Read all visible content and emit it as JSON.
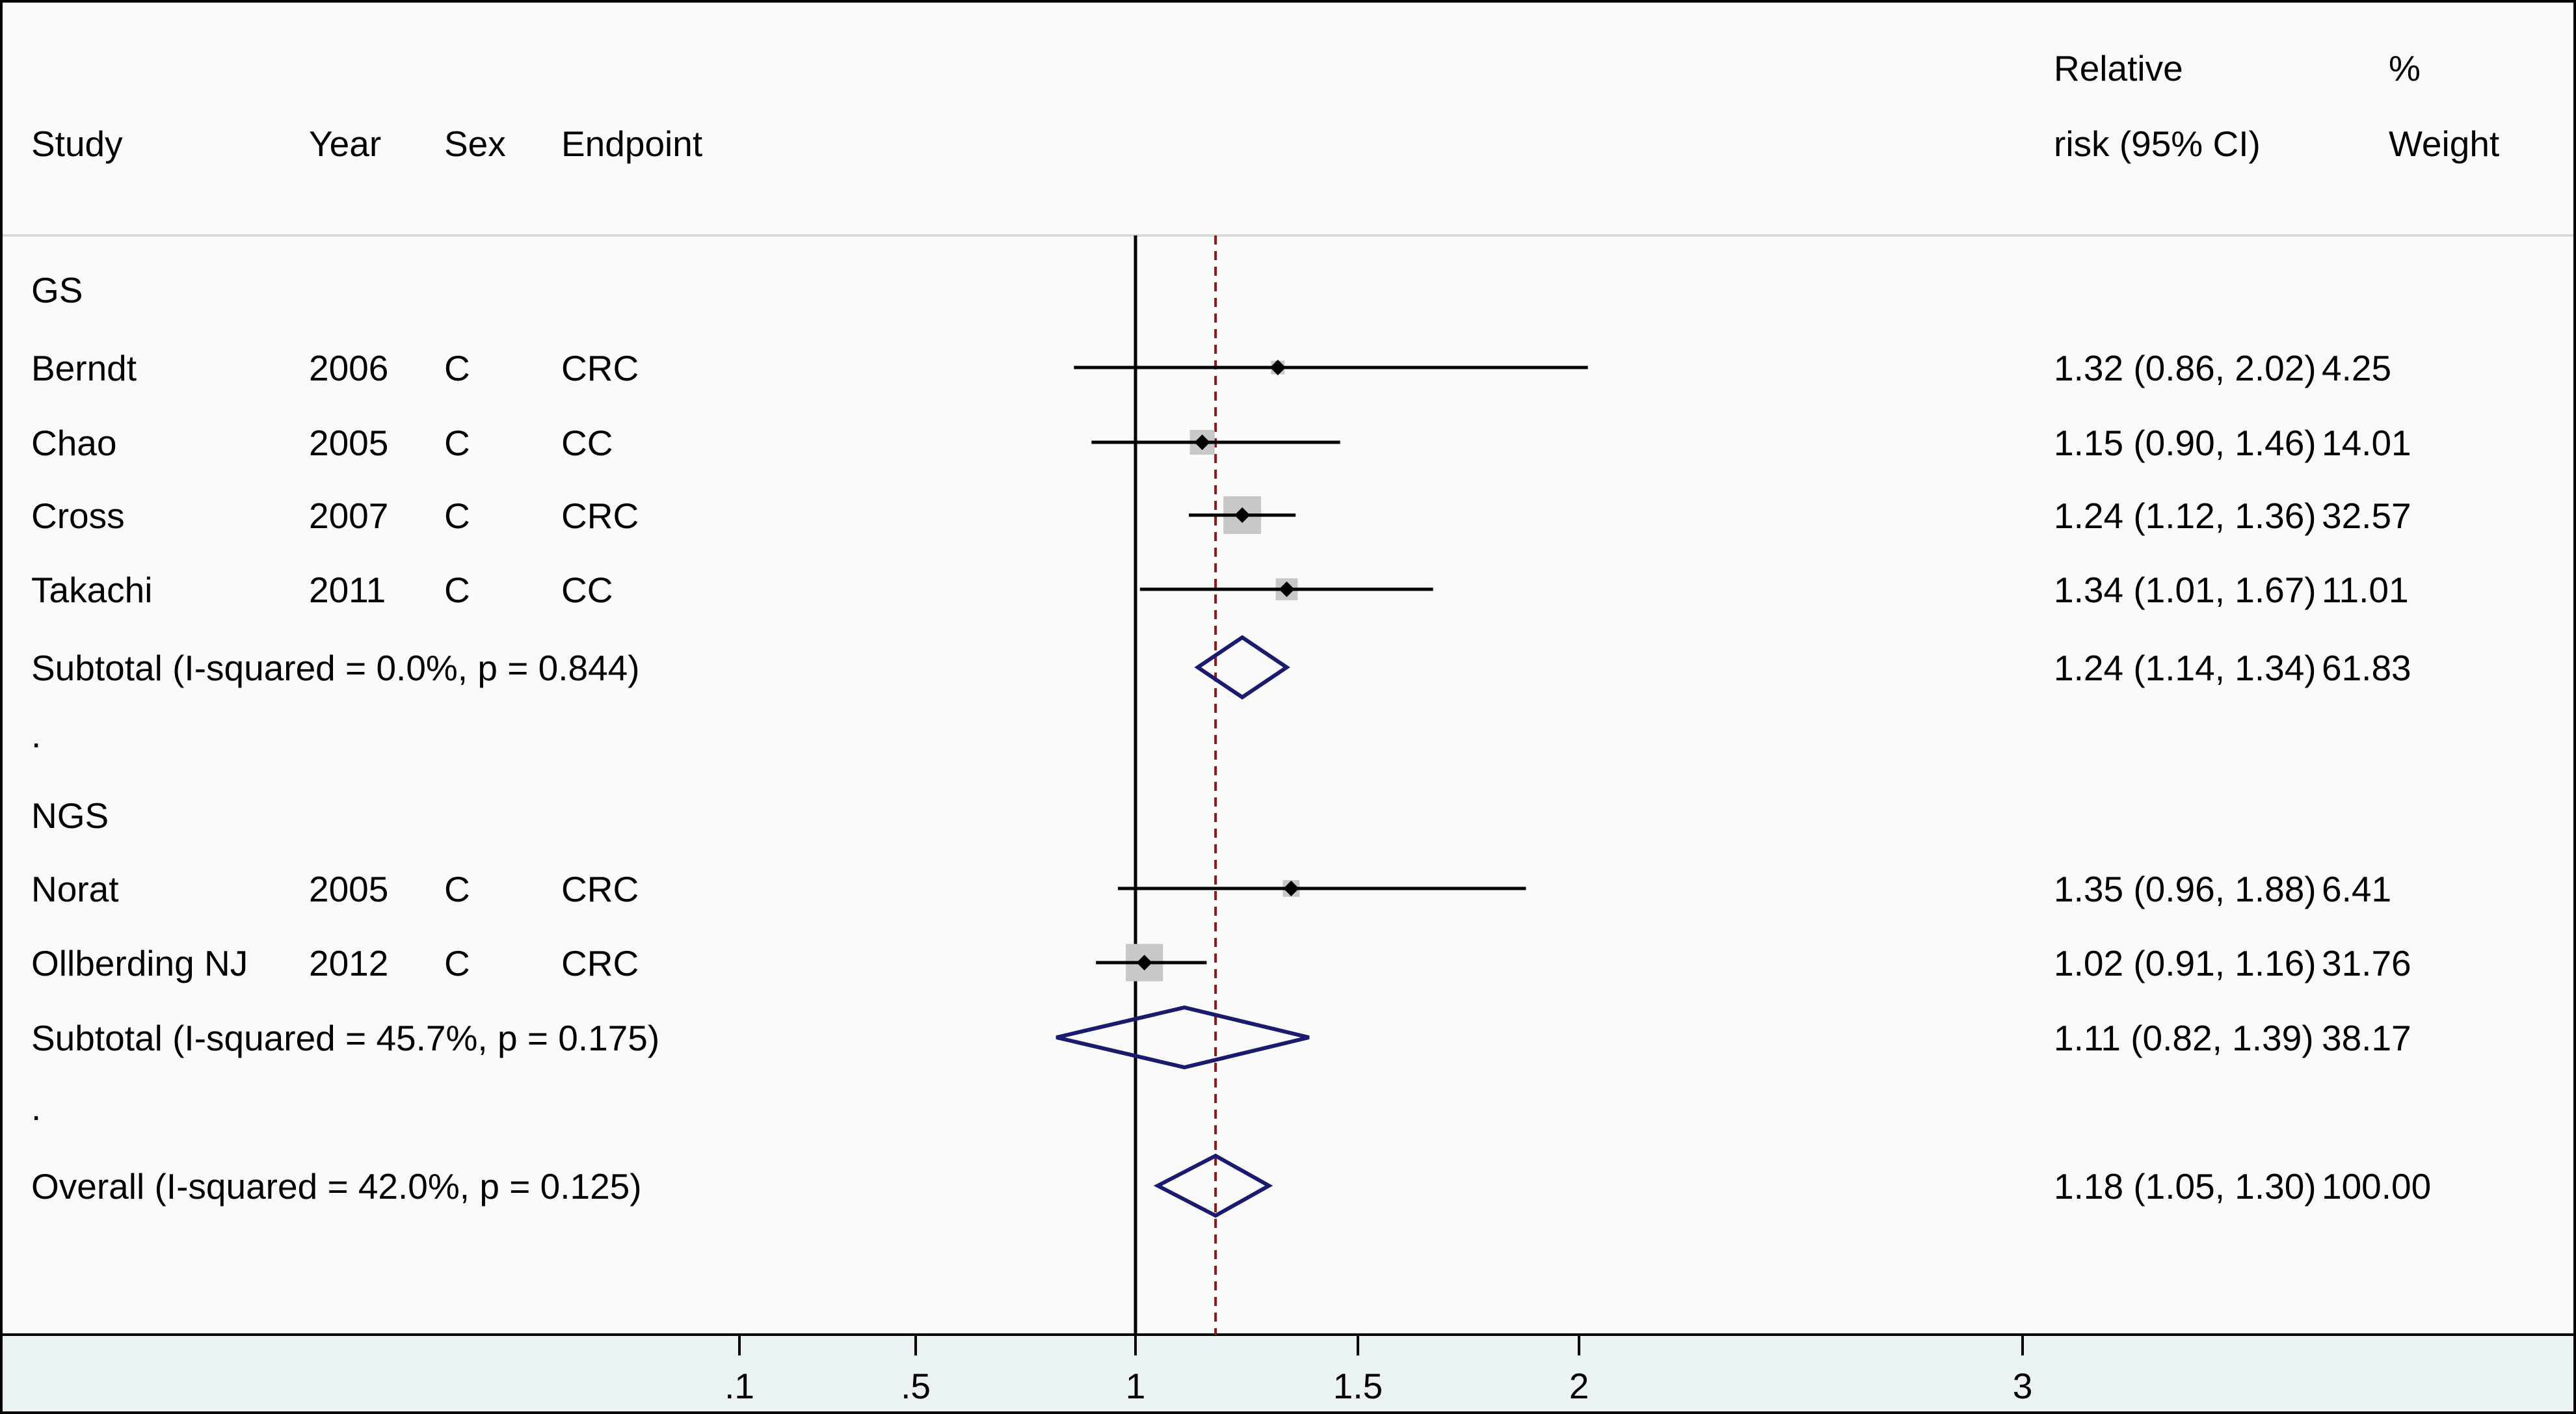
{
  "chart_data": {
    "type": "forest",
    "title": "",
    "columns": {
      "study": "Study",
      "year": "Year",
      "sex": "Sex",
      "endpoint": "Endpoint",
      "rr_line1": "Relative",
      "rr_line2": "risk (95% CI)",
      "weight_line1": "%",
      "weight_line2": "Weight"
    },
    "null_line": 1,
    "overall_effect": 1.18,
    "x_ticks": [
      {
        "value": 0.1,
        "label": ".1"
      },
      {
        "value": 0.5,
        "label": ".5"
      },
      {
        "value": 1,
        "label": "1"
      },
      {
        "value": 1.5,
        "label": "1.5"
      },
      {
        "value": 2,
        "label": "2"
      },
      {
        "value": 3,
        "label": "3"
      }
    ],
    "rows": [
      {
        "kind": "group",
        "label": "GS"
      },
      {
        "kind": "study",
        "study": "Berndt",
        "year": "2006",
        "sex": "C",
        "endpoint": "CRC",
        "rr": 1.32,
        "lo": 0.86,
        "hi": 2.02,
        "ci_text": "1.32 (0.86, 2.02)",
        "weight": 4.25,
        "weight_text": "4.25"
      },
      {
        "kind": "study",
        "study": "Chao",
        "year": "2005",
        "sex": "C",
        "endpoint": "CC",
        "rr": 1.15,
        "lo": 0.9,
        "hi": 1.46,
        "ci_text": "1.15 (0.90, 1.46)",
        "weight": 14.01,
        "weight_text": "14.01"
      },
      {
        "kind": "study",
        "study": "Cross",
        "year": "2007",
        "sex": "C",
        "endpoint": "CRC",
        "rr": 1.24,
        "lo": 1.12,
        "hi": 1.36,
        "ci_text": "1.24 (1.12, 1.36)",
        "weight": 32.57,
        "weight_text": "32.57"
      },
      {
        "kind": "study",
        "study": "Takachi",
        "year": "2011",
        "sex": "C",
        "endpoint": "CC",
        "rr": 1.34,
        "lo": 1.01,
        "hi": 1.67,
        "ci_text": "1.34 (1.01, 1.67)",
        "weight": 11.01,
        "weight_text": "11.01"
      },
      {
        "kind": "subtotal",
        "label": "Subtotal  (I-squared = 0.0%, p = 0.844)",
        "rr": 1.24,
        "lo": 1.14,
        "hi": 1.34,
        "ci_text": "1.24 (1.14, 1.34)",
        "weight_text": "61.83"
      },
      {
        "kind": "spacer",
        "label": "."
      },
      {
        "kind": "group",
        "label": "NGS"
      },
      {
        "kind": "study",
        "study": "Norat",
        "year": "2005",
        "sex": "C",
        "endpoint": "CRC",
        "rr": 1.35,
        "lo": 0.96,
        "hi": 1.88,
        "ci_text": "1.35 (0.96, 1.88)",
        "weight": 6.41,
        "weight_text": "6.41"
      },
      {
        "kind": "study",
        "study": "Ollberding NJ",
        "year": "2012",
        "sex": "C",
        "endpoint": "CRC",
        "rr": 1.02,
        "lo": 0.91,
        "hi": 1.16,
        "ci_text": "1.02 (0.91, 1.16)",
        "weight": 31.76,
        "weight_text": "31.76"
      },
      {
        "kind": "subtotal",
        "label": "Subtotal  (I-squared = 45.7%, p = 0.175)",
        "rr": 1.11,
        "lo": 0.82,
        "hi": 1.39,
        "ci_text": "1.11 (0.82, 1.39)",
        "weight_text": "38.17"
      },
      {
        "kind": "spacer",
        "label": "."
      },
      {
        "kind": "overall",
        "label": "Overall  (I-squared = 42.0%, p = 0.125)",
        "rr": 1.18,
        "lo": 1.05,
        "hi": 1.3,
        "ci_text": "1.18 (1.05, 1.30)",
        "weight_text": "100.00"
      }
    ],
    "colors": {
      "background": "#fafafa",
      "axis_band": "#eaf2f3",
      "ci_line": "#000000",
      "point": "#000000",
      "weight_box": "#c8c8c8",
      "diamond": "#1a1a6e",
      "overall_line": "#8b1a1a",
      "header_rule": "#d8d8d8"
    }
  }
}
